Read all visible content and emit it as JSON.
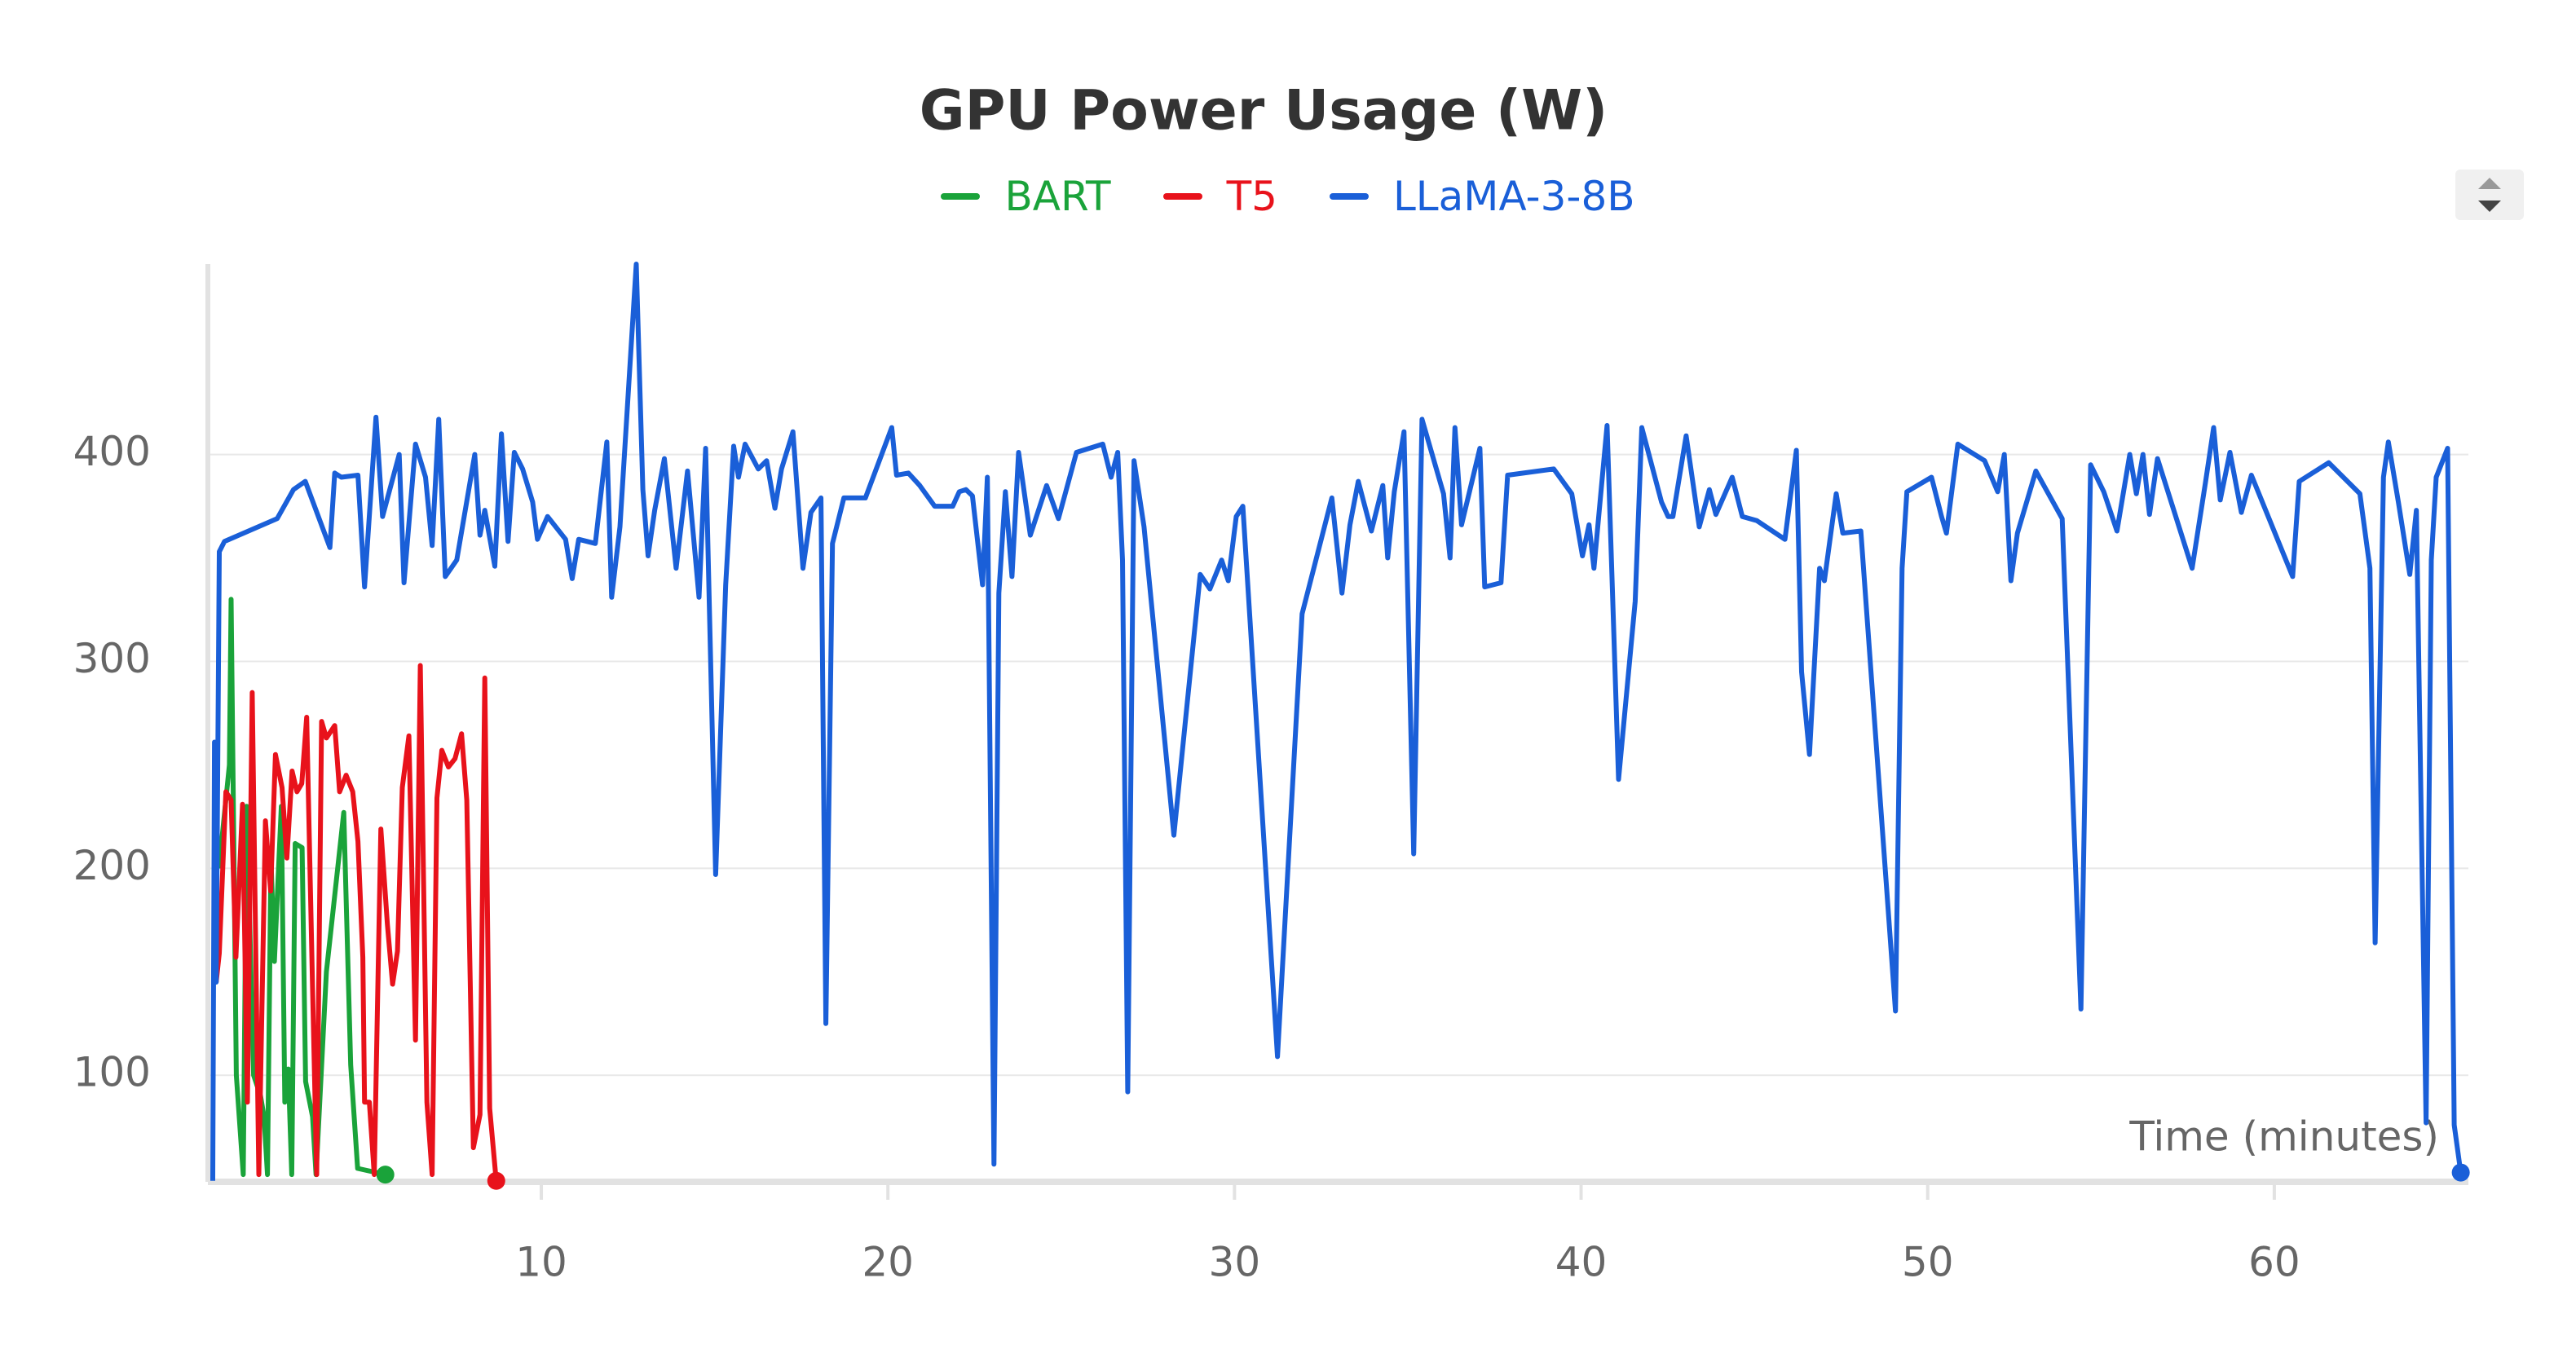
{
  "chart_data": {
    "type": "line",
    "title": "GPU Power Usage (W)",
    "x_label": "Time (minutes)",
    "xlim": [
      0.38,
      65.6
    ],
    "ylim": [
      48.5,
      492
    ],
    "xticks": [
      10,
      20,
      30,
      40,
      50,
      60
    ],
    "yticks": [
      100,
      200,
      300,
      400
    ],
    "grid": true,
    "series": [
      {
        "name": "BART",
        "color": "#1aa33a",
        "x": [
          0.7,
          1.0,
          1.05,
          1.2,
          1.4,
          1.5,
          1.7,
          1.9,
          2.0,
          2.1,
          2.2,
          2.3,
          2.5,
          2.6,
          2.7,
          2.8,
          2.9,
          3.1,
          3.2,
          3.4,
          3.5,
          3.8,
          4.3,
          4.5,
          4.7,
          5.5
        ],
        "values": [
          200,
          250,
          330,
          100,
          52,
          230,
          100,
          90,
          80,
          52,
          205,
          155,
          230,
          87,
          103,
          52,
          212,
          210,
          97,
          80,
          52,
          150,
          227,
          105,
          55,
          52
        ]
      },
      {
        "name": "T5",
        "color": "#e8121b",
        "x": [
          0.62,
          0.71,
          0.9,
          1.05,
          1.19,
          1.38,
          1.52,
          1.66,
          1.85,
          2.04,
          2.19,
          2.33,
          2.52,
          2.66,
          2.81,
          2.95,
          3.09,
          3.23,
          3.38,
          3.52,
          3.66,
          3.8,
          4.04,
          4.18,
          4.37,
          4.56,
          4.71,
          4.85,
          4.9,
          5.04,
          5.18,
          5.37,
          5.56,
          5.71,
          5.85,
          5.99,
          6.18,
          6.37,
          6.51,
          6.7,
          6.85,
          6.99,
          7.13,
          7.32,
          7.51,
          7.7,
          7.85,
          8.04,
          8.23,
          8.37,
          8.51,
          8.7
        ],
        "values": [
          145,
          159,
          237,
          233,
          157,
          231,
          87,
          285,
          52,
          223,
          189,
          255,
          239,
          205,
          247,
          237,
          241,
          273,
          157,
          52,
          271,
          263,
          269,
          237,
          245,
          237,
          213,
          157,
          87,
          87,
          52,
          219,
          173,
          144,
          160,
          239,
          264,
          117,
          298,
          87,
          52,
          234,
          257,
          249,
          253,
          265,
          233,
          65,
          81,
          292,
          84,
          49
        ]
      },
      {
        "name": "LLaMA-3-8B",
        "color": "#1a5fd8",
        "x": [
          0.52,
          0.57,
          0.62,
          0.71,
          0.86,
          2.38,
          2.85,
          3.19,
          3.9,
          4.04,
          4.23,
          4.71,
          4.9,
          5.23,
          5.42,
          5.9,
          6.04,
          6.37,
          6.66,
          6.85,
          7.04,
          7.23,
          7.56,
          8.08,
          8.23,
          8.37,
          8.66,
          8.85,
          9.04,
          9.22,
          9.46,
          9.75,
          9.89,
          10.18,
          10.7,
          10.89,
          11.08,
          11.56,
          11.89,
          12.03,
          12.27,
          12.74,
          12.93,
          13.08,
          13.27,
          13.55,
          13.89,
          14.22,
          14.55,
          14.74,
          15.03,
          15.32,
          15.55,
          15.69,
          15.88,
          16.26,
          16.5,
          16.74,
          16.93,
          17.26,
          17.55,
          17.78,
          18.07,
          18.21,
          18.4,
          18.73,
          19.35,
          20.11,
          20.25,
          20.59,
          20.92,
          21.35,
          21.87,
          22.06,
          22.25,
          22.44,
          22.73,
          22.87,
          23.06,
          23.2,
          23.39,
          23.58,
          23.77,
          24.11,
          24.58,
          24.92,
          25.44,
          26.2,
          26.44,
          26.63,
          26.77,
          26.92,
          27.1,
          27.39,
          28.25,
          29.01,
          29.29,
          29.63,
          29.82,
          30.05,
          30.24,
          31.24,
          31.95,
          32.81,
          33.1,
          33.33,
          33.57,
          33.95,
          34.28,
          34.42,
          34.61,
          34.89,
          35.17,
          35.41,
          36.03,
          36.22,
          36.36,
          36.55,
          37.08,
          37.22,
          37.69,
          37.88,
          39.21,
          39.73,
          40.04,
          40.23,
          40.37,
          40.75,
          41.08,
          41.56,
          41.75,
          42.32,
          42.51,
          42.65,
          43.03,
          43.41,
          43.7,
          43.89,
          44.36,
          44.65,
          45.07,
          45.88,
          46.21,
          46.36,
          46.59,
          46.88,
          47.02,
          47.36,
          47.55,
          48.07,
          49.07,
          49.26,
          49.4,
          50.11,
          50.4,
          50.54,
          50.87,
          51.64,
          52.02,
          52.21,
          52.4,
          52.59,
          53.12,
          53.88,
          54.42,
          54.7,
          55.08,
          55.46,
          55.83,
          56.02,
          56.21,
          56.4,
          56.63,
          57.63,
          58.01,
          58.25,
          58.44,
          58.72,
          59.05,
          59.34,
          60.53,
          60.72,
          61.57,
          62.47,
          62.76,
          62.91,
          63.15,
          63.29,
          63.58,
          63.91,
          64.1,
          64.38,
          64.53,
          64.67,
          65.0,
          65.19,
          65.38
        ],
        "values": [
          49,
          261,
          145,
          353,
          358,
          369,
          383,
          387,
          355,
          391,
          389,
          390,
          336,
          418,
          370,
          400,
          338,
          405,
          389,
          356,
          417,
          341,
          349,
          400,
          361,
          373,
          346,
          410,
          358,
          401,
          393,
          377,
          359,
          370,
          359,
          340,
          359,
          357,
          406,
          331,
          365,
          492,
          383,
          351,
          373,
          398,
          345,
          392,
          331,
          403,
          197,
          337,
          404,
          389,
          405,
          393,
          397,
          374,
          393,
          411,
          345,
          372,
          379,
          125,
          357,
          379,
          379,
          413,
          390,
          391,
          385,
          375,
          375,
          382,
          383,
          380,
          337,
          389,
          57,
          333,
          382,
          341,
          401,
          361,
          385,
          369,
          401,
          405,
          389,
          401,
          349,
          92,
          397,
          365,
          216,
          342,
          335,
          349,
          339,
          370,
          375,
          109,
          323,
          379,
          333,
          366,
          387,
          363,
          385,
          350,
          382,
          411,
          207,
          417,
          381,
          350,
          413,
          366,
          403,
          336,
          338,
          390,
          393,
          381,
          351,
          366,
          345,
          414,
          243,
          329,
          413,
          377,
          370,
          370,
          409,
          365,
          383,
          371,
          389,
          370,
          368,
          359,
          402,
          295,
          255,
          345,
          339,
          381,
          362,
          363,
          131,
          345,
          382,
          389,
          370,
          362,
          405,
          397,
          382,
          400,
          339,
          362,
          392,
          369,
          132,
          395,
          382,
          363,
          400,
          381,
          400,
          371,
          398,
          345,
          386,
          413,
          378,
          401,
          372,
          390,
          341,
          387,
          396,
          381,
          345,
          164,
          389,
          406,
          377,
          342,
          373,
          77,
          349,
          389,
          403,
          76,
          53
        ]
      }
    ]
  }
}
